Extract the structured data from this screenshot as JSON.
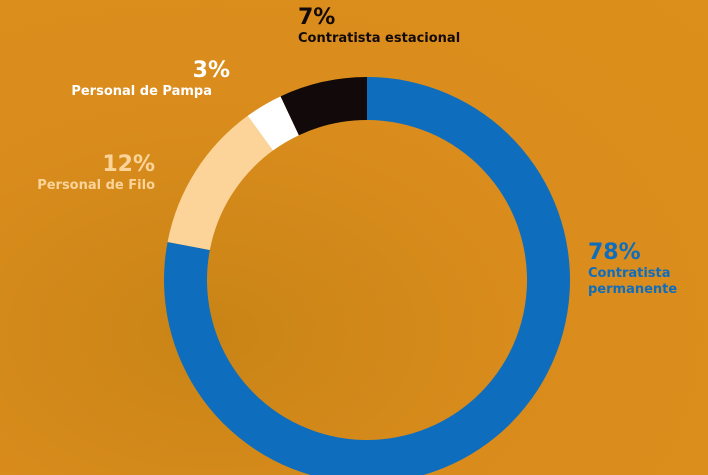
{
  "chart_data": {
    "type": "donut",
    "categories": [
      "Contratista permanente",
      "Personal de Filo",
      "Personal de Pampa",
      "Contratista estacional"
    ],
    "values": [
      78,
      12,
      3,
      7
    ],
    "value_labels": [
      "78%",
      "12%",
      "3%",
      "7%"
    ],
    "colors": [
      "#0f6dbd",
      "#fcd49a",
      "#ffffff",
      "#120a0a"
    ]
  }
}
